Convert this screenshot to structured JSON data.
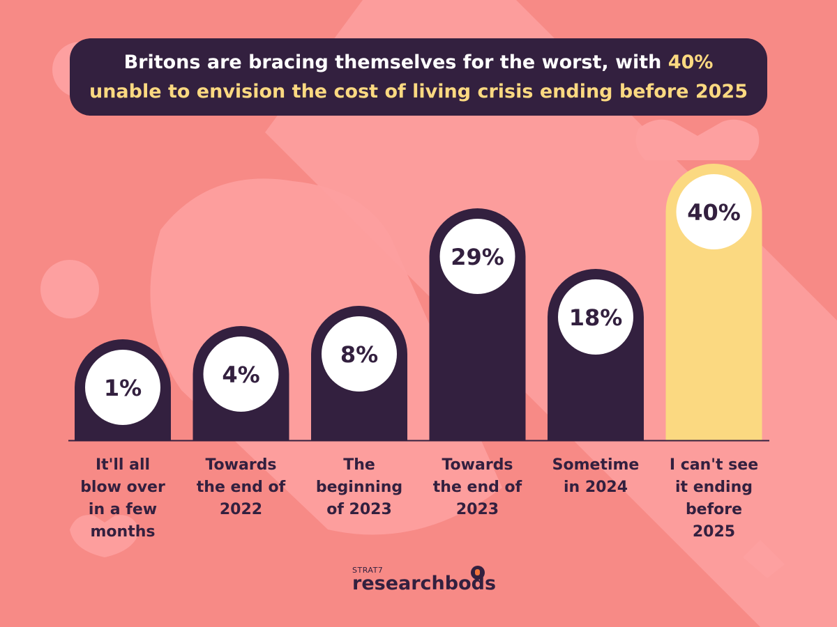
{
  "header": {
    "title_part1": "Britons are bracing themselves for the worst, with ",
    "title_highlight1": "40%",
    "title_highlight2": "unable to envision the cost of living crisis ending before 2025"
  },
  "chart_data": {
    "type": "bar",
    "categories": [
      "It'll all blow over in a few months",
      "Towards the end of 2022",
      "The beginning of 2023",
      "Towards the end of 2023",
      "Sometime in 2024",
      "I can't see it ending before 2025"
    ],
    "category_lines": [
      [
        "It'll all",
        "blow over",
        "in a few",
        "months"
      ],
      [
        "Towards",
        "the end of",
        "2022"
      ],
      [
        "The",
        "beginning",
        "of 2023"
      ],
      [
        "Towards",
        "the end of",
        "2023"
      ],
      [
        "Sometime",
        "in 2024"
      ],
      [
        "I can't see",
        "it ending",
        "before",
        "2025"
      ]
    ],
    "values": [
      1,
      4,
      8,
      29,
      18,
      40
    ],
    "value_labels": [
      "1%",
      "4%",
      "8%",
      "29%",
      "18%",
      "40%"
    ],
    "highlight_index": 5,
    "grid": false
  },
  "colors": {
    "background": "#f78a86",
    "bar": "#33203f",
    "highlight_bar": "#fbd981",
    "value_circle": "#ffffff",
    "text_dark": "#33203f",
    "title_highlight": "#fbd981"
  },
  "logo": {
    "small_text": "STRAT7",
    "name": "researchbods"
  }
}
